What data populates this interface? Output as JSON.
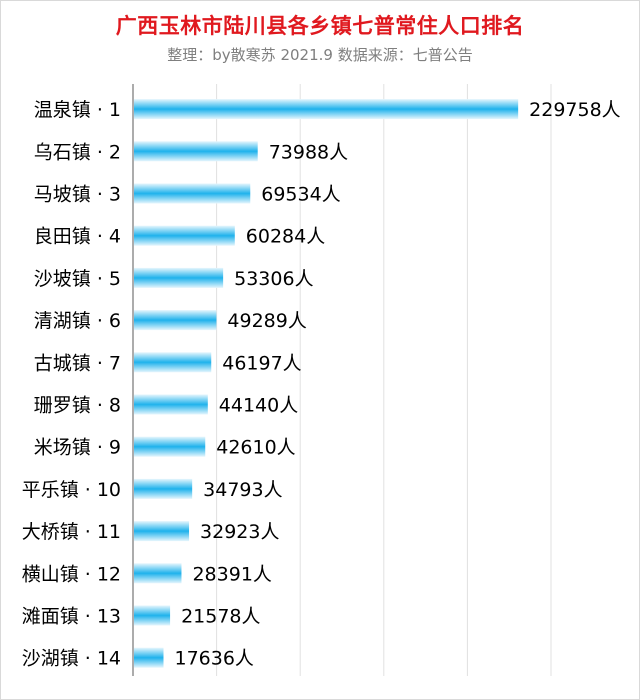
{
  "title": "广西玉林市陆川县各乡镇七普常住人口排名",
  "subtitle": "整理：by散寒苏 2021.9 数据来源：七普公告",
  "colors": {
    "title": "#e0191f",
    "subtitle": "#7f7f7f",
    "bar_center": "#1fb2ec",
    "bar_edge": "#e6f6fd",
    "gridline": "#e0e0e0",
    "axis": "#595959",
    "label": "#000000"
  },
  "chart_data": {
    "type": "bar",
    "orientation": "horizontal",
    "title": "广西玉林市陆川县各乡镇七普常住人口排名",
    "subtitle": "整理：by散寒苏 2021.9 数据来源：七普公告",
    "categories": [
      "温泉镇 · 1",
      "乌石镇 · 2",
      "马坡镇 · 3",
      "良田镇 · 4",
      "沙坡镇 · 5",
      "清湖镇 · 6",
      "古城镇 · 7",
      "珊罗镇 · 8",
      "米场镇 · 9",
      "平乐镇 · 10",
      "大桥镇 · 11",
      "横山镇 · 12",
      "滩面镇 · 13",
      "沙湖镇 · 14"
    ],
    "values": [
      229758,
      73988,
      69534,
      60284,
      53306,
      49289,
      46197,
      44140,
      42610,
      34793,
      32923,
      28391,
      21578,
      17636
    ],
    "value_labels": [
      "229758人",
      "73988人",
      "69534人",
      "60284人",
      "53306人",
      "49289人",
      "46197人",
      "44140人",
      "42610人",
      "34793人",
      "32923人",
      "28391人",
      "21578人",
      "17636人"
    ],
    "xlim": [
      0,
      250000
    ],
    "grid": true,
    "legend": "none"
  }
}
